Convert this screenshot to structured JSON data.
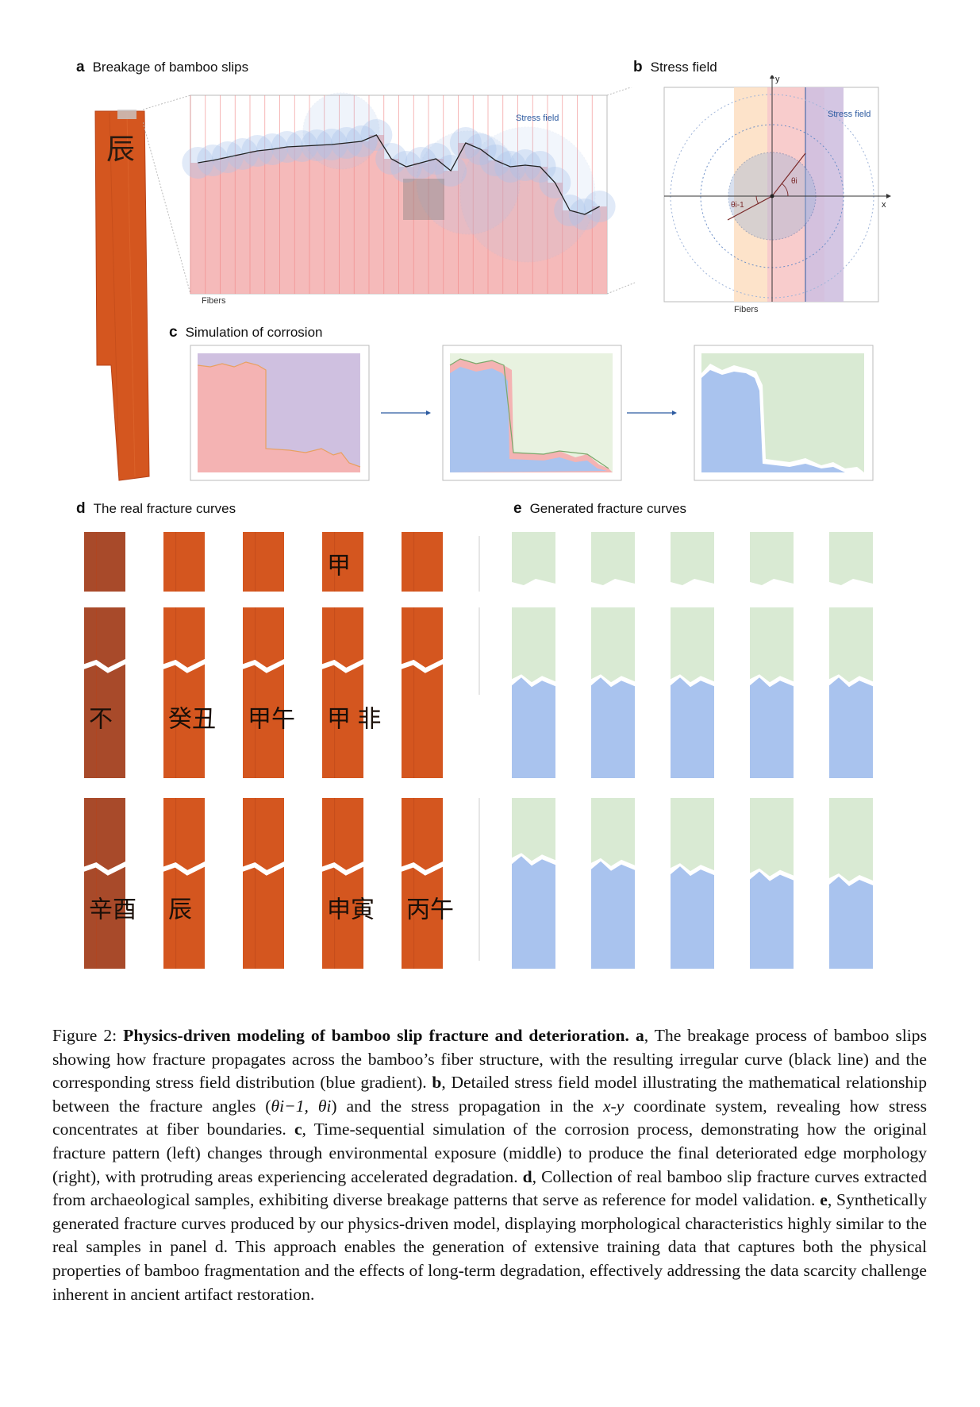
{
  "panels": {
    "a": {
      "letter": "a",
      "title": "Breakage of bamboo slips",
      "stress_label": "Stress field",
      "fibers_label": "Fibers"
    },
    "b": {
      "letter": "b",
      "title": "Stress field",
      "stress_label": "Stress field",
      "fibers_label": "Fibers",
      "axis_x": "x",
      "axis_y": "y",
      "theta_prev": "θi-1",
      "theta_i": "θi"
    },
    "c": {
      "letter": "c",
      "title": "Simulation of corrosion"
    },
    "d": {
      "letter": "d",
      "title": "The real fracture curves"
    },
    "e": {
      "letter": "e",
      "title": "Generated fracture curves"
    }
  },
  "slip_glyphs": {
    "panel_a": "辰",
    "row2": [
      "不",
      "癸丑",
      "甲午",
      "甲 非",
      ""
    ],
    "row3": [
      "辛酉",
      "辰",
      "",
      "申寅",
      "丙午"
    ],
    "row1": [
      "",
      "",
      "",
      "甲",
      ""
    ]
  },
  "caption": {
    "figure_label": "Figure 2: ",
    "title": "Physics-driven modeling of bamboo slip fracture and deterioration.",
    "a_label": "a",
    "a_text": ", The breakage process of bamboo slips showing how fracture propagates across the bamboo’s fiber structure, with the resulting irregular curve (black line) and the corresponding stress field distribution (blue gradient). ",
    "b_label": "b",
    "b_text_1": ", Detailed stress field model illustrating the mathematical relationship between the fracture angles (",
    "b_math": "θi−1, θi",
    "b_text_2": ") and the stress propagation in the ",
    "b_coord": "x-y",
    "b_text_3": " coordinate system, revealing how stress concentrates at fiber boundaries. ",
    "c_label": "c",
    "c_text": ", Time-sequential simulation of the corrosion process, demonstrating how the original fracture pattern (left) changes through environmental exposure (middle) to produce the final deteriorated edge morphology (right), with protruding areas experiencing accelerated degradation. ",
    "d_label": "d",
    "d_text": ", Collection of real bamboo slip fracture curves extracted from archaeological samples, exhibiting diverse breakage patterns that serve as reference for model validation. ",
    "e_label": "e",
    "e_text": ", Synthetically generated fracture curves produced by our physics-driven model, displaying morphological characteristics highly similar to the real samples in panel d. This approach enables the generation of extensive training data that captures both the physical properties of bamboo fragmentation and the effects of long-term degradation, effectively addressing the data scarcity challenge inherent in ancient artifact restoration."
  },
  "colors": {
    "slip": "#d4561f",
    "fiber_pink": "#f4b3b3",
    "stress_blue": "#aac4ec",
    "purple": "#cfc0e0",
    "green": "#d9ead3",
    "blue_fill": "#a9c3ee"
  }
}
